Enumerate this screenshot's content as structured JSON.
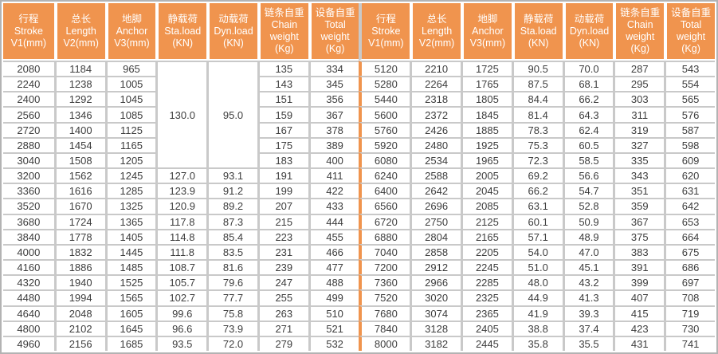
{
  "colors": {
    "accent": "#F0944E",
    "grid": "#C9C9C9",
    "frame": "#B3B3B3",
    "header_text": "#FFFFFF",
    "cell_text": "#3D3D3D",
    "cell_bg": "#FFFFFF"
  },
  "table": {
    "header": {
      "columns": [
        {
          "key": "stroke",
          "label": "行程\nStroke\nV1(mm)"
        },
        {
          "key": "length",
          "label": "总长\nLength\nV2(mm)"
        },
        {
          "key": "anchor",
          "label": "地脚\nAnchor\nV3(mm)"
        },
        {
          "key": "sta-load",
          "label": "静载荷\nSta.load\n(KN)"
        },
        {
          "key": "dyn-load",
          "label": "动载荷\nDyn.load\n(KN)"
        },
        {
          "key": "chain-weight",
          "label": "链条自重\nChain\nweight\n(Kg)"
        },
        {
          "key": "total-weight",
          "label": "设备自重\nTotal\nweight\n(Kg)"
        }
      ]
    },
    "merges": [
      {
        "half": "left",
        "row": 0,
        "col": 3,
        "rowspan": 7
      },
      {
        "half": "left",
        "row": 0,
        "col": 4,
        "rowspan": 7
      }
    ],
    "rows": {
      "left": [
        [
          "2080",
          "1184",
          "965",
          "130.0",
          "95.0",
          "135",
          "334"
        ],
        [
          "2240",
          "1238",
          "1005",
          null,
          null,
          "143",
          "345"
        ],
        [
          "2400",
          "1292",
          "1045",
          null,
          null,
          "151",
          "356"
        ],
        [
          "2560",
          "1346",
          "1085",
          null,
          null,
          "159",
          "367"
        ],
        [
          "2720",
          "1400",
          "1125",
          null,
          null,
          "167",
          "378"
        ],
        [
          "2880",
          "1454",
          "1165",
          null,
          null,
          "175",
          "389"
        ],
        [
          "3040",
          "1508",
          "1205",
          null,
          null,
          "183",
          "400"
        ],
        [
          "3200",
          "1562",
          "1245",
          "127.0",
          "93.1",
          "191",
          "411"
        ],
        [
          "3360",
          "1616",
          "1285",
          "123.9",
          "91.2",
          "199",
          "422"
        ],
        [
          "3520",
          "1670",
          "1325",
          "120.9",
          "89.2",
          "207",
          "433"
        ],
        [
          "3680",
          "1724",
          "1365",
          "117.8",
          "87.3",
          "215",
          "444"
        ],
        [
          "3840",
          "1778",
          "1405",
          "114.8",
          "85.4",
          "223",
          "455"
        ],
        [
          "4000",
          "1832",
          "1445",
          "111.8",
          "83.5",
          "231",
          "466"
        ],
        [
          "4160",
          "1886",
          "1485",
          "108.7",
          "81.6",
          "239",
          "477"
        ],
        [
          "4320",
          "1940",
          "1525",
          "105.7",
          "79.6",
          "247",
          "488"
        ],
        [
          "4480",
          "1994",
          "1565",
          "102.7",
          "77.7",
          "255",
          "499"
        ],
        [
          "4640",
          "2048",
          "1605",
          "99.6",
          "75.8",
          "263",
          "510"
        ],
        [
          "4800",
          "2102",
          "1645",
          "96.6",
          "73.9",
          "271",
          "521"
        ],
        [
          "4960",
          "2156",
          "1685",
          "93.5",
          "72.0",
          "279",
          "532"
        ]
      ],
      "right": [
        [
          "5120",
          "2210",
          "1725",
          "90.5",
          "70.0",
          "287",
          "543"
        ],
        [
          "5280",
          "2264",
          "1765",
          "87.5",
          "68.1",
          "295",
          "554"
        ],
        [
          "5440",
          "2318",
          "1805",
          "84.4",
          "66.2",
          "303",
          "565"
        ],
        [
          "5600",
          "2372",
          "1845",
          "81.4",
          "64.3",
          "311",
          "576"
        ],
        [
          "5760",
          "2426",
          "1885",
          "78.3",
          "62.4",
          "319",
          "587"
        ],
        [
          "5920",
          "2480",
          "1925",
          "75.3",
          "60.5",
          "327",
          "598"
        ],
        [
          "6080",
          "2534",
          "1965",
          "72.3",
          "58.5",
          "335",
          "609"
        ],
        [
          "6240",
          "2588",
          "2005",
          "69.2",
          "56.6",
          "343",
          "620"
        ],
        [
          "6400",
          "2642",
          "2045",
          "66.2",
          "54.7",
          "351",
          "631"
        ],
        [
          "6560",
          "2696",
          "2085",
          "63.1",
          "52.8",
          "359",
          "642"
        ],
        [
          "6720",
          "2750",
          "2125",
          "60.1",
          "50.9",
          "367",
          "653"
        ],
        [
          "6880",
          "2804",
          "2165",
          "57.1",
          "48.9",
          "375",
          "664"
        ],
        [
          "7040",
          "2858",
          "2205",
          "54.0",
          "47.0",
          "383",
          "675"
        ],
        [
          "7200",
          "2912",
          "2245",
          "51.0",
          "45.1",
          "391",
          "686"
        ],
        [
          "7360",
          "2966",
          "2285",
          "48.0",
          "43.2",
          "399",
          "697"
        ],
        [
          "7520",
          "3020",
          "2325",
          "44.9",
          "41.3",
          "407",
          "708"
        ],
        [
          "7680",
          "3074",
          "2365",
          "41.9",
          "39.3",
          "415",
          "719"
        ],
        [
          "7840",
          "3128",
          "2405",
          "38.8",
          "37.4",
          "423",
          "730"
        ],
        [
          "8000",
          "3182",
          "2445",
          "35.8",
          "35.5",
          "431",
          "741"
        ]
      ]
    }
  }
}
